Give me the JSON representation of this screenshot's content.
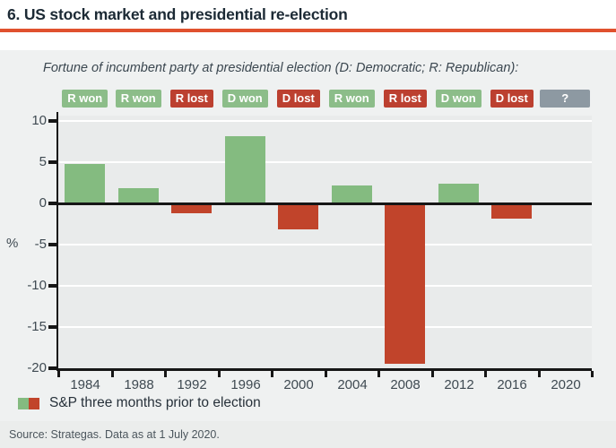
{
  "header": {
    "title": "6. US stock market and presidential re-election",
    "accent_color": "#e0512e"
  },
  "chart_data": {
    "type": "bar",
    "title": "Fortune of incumbent party at presidential election (D: Democratic; R: Republican):",
    "categories": [
      "1984",
      "1988",
      "1992",
      "1996",
      "2000",
      "2004",
      "2008",
      "2012",
      "2016",
      "2020"
    ],
    "values": [
      4.8,
      1.9,
      -1.2,
      8.2,
      -3.2,
      2.2,
      -19.5,
      2.4,
      -1.9,
      null
    ],
    "badges": [
      {
        "label": "R won",
        "type": "won"
      },
      {
        "label": "R won",
        "type": "won"
      },
      {
        "label": "R lost",
        "type": "lost"
      },
      {
        "label": "D won",
        "type": "won"
      },
      {
        "label": "D lost",
        "type": "lost"
      },
      {
        "label": "R won",
        "type": "won"
      },
      {
        "label": "R lost",
        "type": "lost"
      },
      {
        "label": "D won",
        "type": "won"
      },
      {
        "label": "D lost",
        "type": "lost"
      },
      {
        "label": "?",
        "type": "unknown"
      }
    ],
    "ylabel": "%",
    "yticks": [
      10,
      5,
      0,
      -5,
      -10,
      -15,
      -20
    ],
    "ylim": [
      -20,
      10
    ],
    "grid": true,
    "legend": [
      {
        "label": "S&P three months prior to election"
      }
    ],
    "colors": {
      "positive": "#84bb80",
      "negative": "#c1442b",
      "badge_won": "#8cbd89",
      "badge_lost": "#bc4030",
      "badge_unknown": "#8d99a2",
      "axis": "#161616",
      "plot_bg": "#e9ebeb",
      "grid_line": "#ffffff",
      "tick_text": "#3f4a52"
    }
  },
  "footer": {
    "source": "Source: Strategas. Data as at 1 July 2020."
  }
}
